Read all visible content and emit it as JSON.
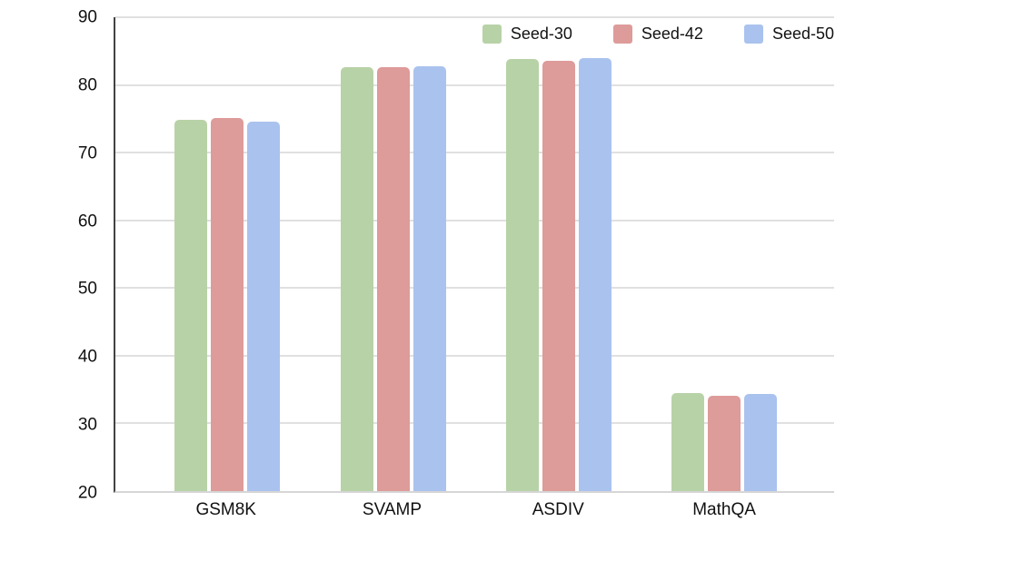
{
  "chart_data": {
    "type": "bar",
    "title": "",
    "xlabel": "",
    "ylabel": "",
    "categories": [
      "GSM8K",
      "SVAMP",
      "ASDIV",
      "MathQA"
    ],
    "series": [
      {
        "name": "Seed-30",
        "color": "#b8d2a7",
        "values": [
          74.9,
          82.6,
          83.8,
          34.5
        ]
      },
      {
        "name": "Seed-42",
        "color": "#dd9b9a",
        "values": [
          75.1,
          82.6,
          83.6,
          34.1
        ]
      },
      {
        "name": "Seed-50",
        "color": "#aac2ee",
        "values": [
          74.6,
          82.8,
          84.0,
          34.3
        ]
      }
    ],
    "ylim": [
      20,
      90
    ],
    "yticks": [
      20,
      30,
      40,
      50,
      60,
      70,
      80,
      90
    ],
    "grid": true,
    "legend_position": "top-right",
    "axis_color": "#424242",
    "gridline_color": "#e0e0e0",
    "tick_label_color": "#111111",
    "background_color": "#ffffff"
  }
}
